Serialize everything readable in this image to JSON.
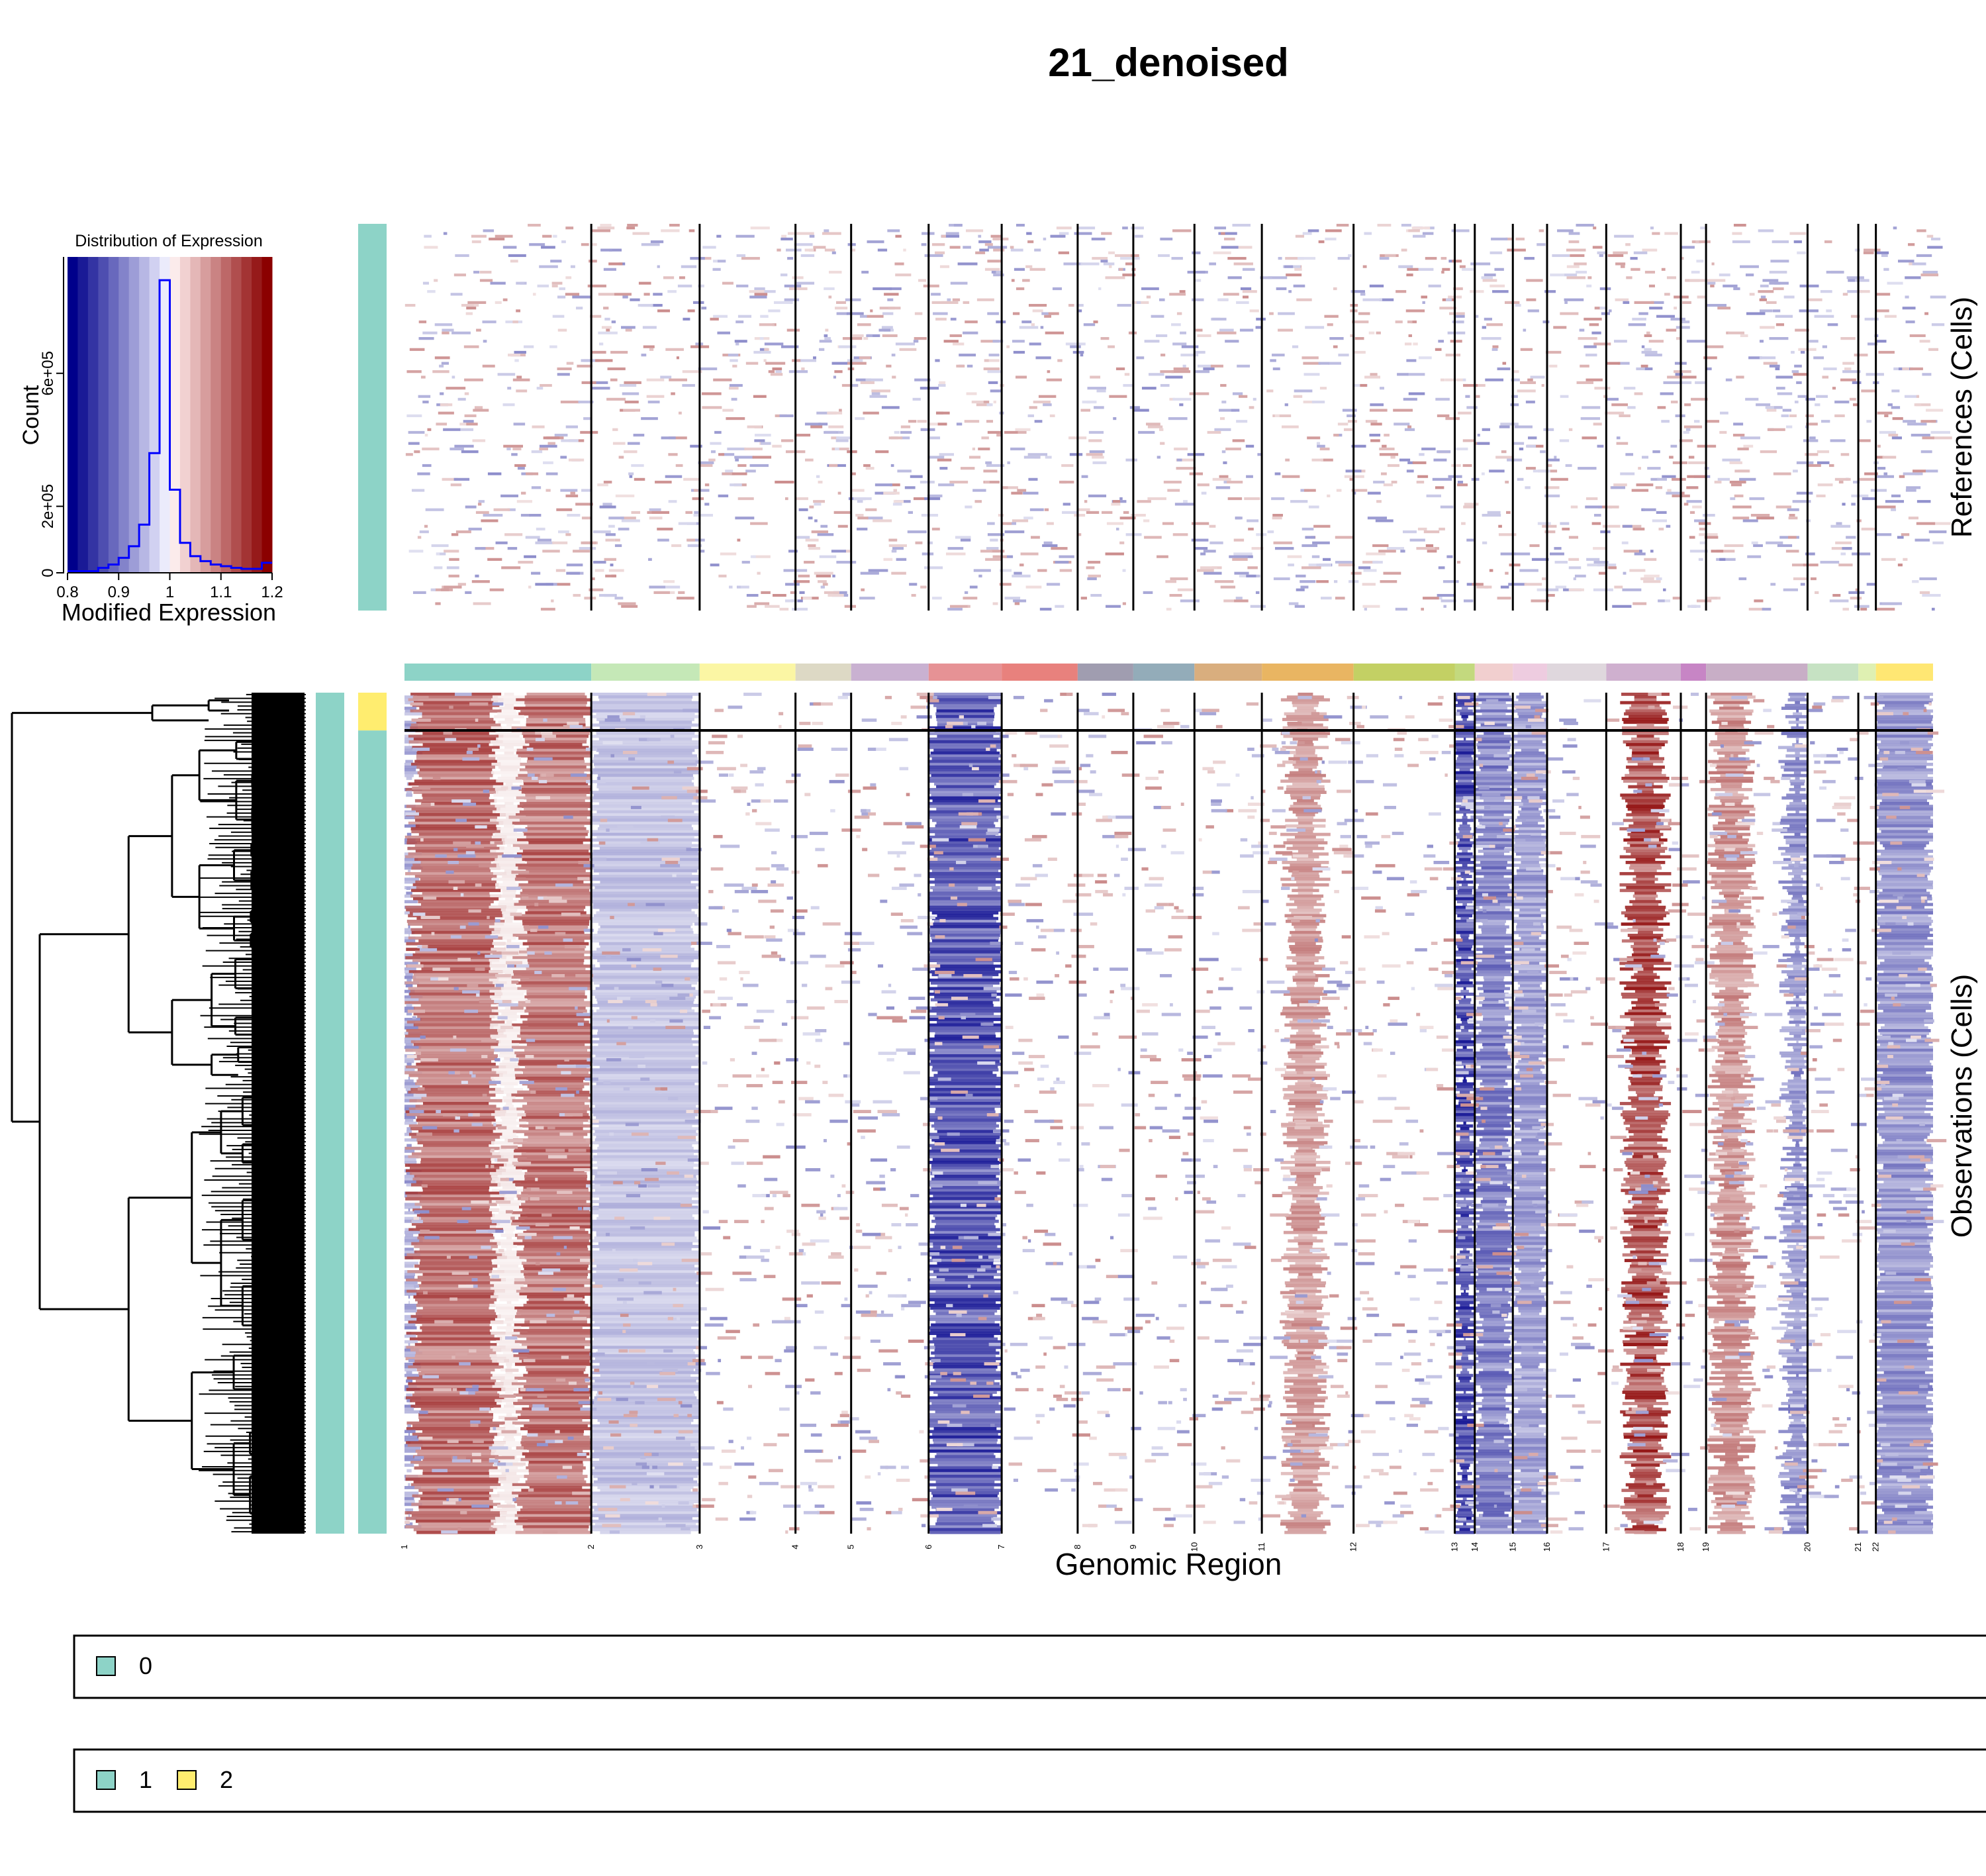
{
  "title": "21_denoised",
  "histogram": {
    "title": "Distribution of Expression",
    "xlabel": "Modified Expression",
    "ylabel": "Count",
    "x_ticks": [
      "0.8",
      "0.9",
      "1",
      "1.1",
      "1.2"
    ],
    "y_ticks": [
      "0",
      "2e+05",
      "6e+05"
    ]
  },
  "heatmap": {
    "xlabel": "Genomic Region",
    "references_label": "References (Cells)",
    "observations_label": "Observations (Cells)"
  },
  "legends": [
    {
      "items": [
        {
          "label": "0",
          "color": "#8dd3c7"
        }
      ]
    },
    {
      "items": [
        {
          "label": "1",
          "color": "#8dd3c7"
        },
        {
          "label": "2",
          "color": "#ffed6f"
        }
      ]
    }
  ],
  "colors": {
    "low": "#00008b",
    "high": "#8b0000",
    "mid": "#ffffff",
    "histogram_line": "#0000ff"
  },
  "chart_data": [
    {
      "type": "bar",
      "name": "histogram",
      "x_domain": [
        0.8,
        1.2
      ],
      "bin_edges": [
        0.8,
        0.82,
        0.84,
        0.86,
        0.88,
        0.9,
        0.92,
        0.94,
        0.96,
        0.98,
        1.0,
        1.02,
        1.04,
        1.06,
        1.08,
        1.1,
        1.12,
        1.14,
        1.16,
        1.18,
        1.2
      ],
      "counts": [
        5000,
        5000,
        5000,
        15000,
        25000,
        45000,
        80000,
        145000,
        360000,
        880000,
        250000,
        90000,
        50000,
        35000,
        25000,
        20000,
        15000,
        12000,
        12000,
        30000
      ],
      "ylim": [
        0,
        950000
      ],
      "color_bins": [
        "#00008b",
        "#1a1a96",
        "#3434a3",
        "#4e4eb0",
        "#6868bd",
        "#8383ca",
        "#9d9dd7",
        "#b7b7e4",
        "#d1d1f1",
        "#ebebfb",
        "#fbebeb",
        "#f1d1d1",
        "#e4b7b7",
        "#d79d9d",
        "#ca8383",
        "#bd6868",
        "#b04e4e",
        "#a33434",
        "#961a1a",
        "#8b0000"
      ]
    },
    {
      "type": "heatmap",
      "name": "infercnv",
      "chromosomes": [
        "1",
        "2",
        "3",
        "4",
        "5",
        "6",
        "7",
        "8",
        "9",
        "10",
        "11",
        "12",
        "13",
        "14",
        "15",
        "16",
        "17",
        "18",
        "19",
        "20",
        "21",
        "22"
      ],
      "chrom_boundaries": [
        0,
        0.1222,
        0.1931,
        0.2558,
        0.2922,
        0.3429,
        0.3907,
        0.4404,
        0.4768,
        0.5168,
        0.5609,
        0.6209,
        0.6871,
        0.7002,
        0.7251,
        0.7475,
        0.7862,
        0.835,
        0.8515,
        0.9179,
        0.9511,
        0.9626,
        1.0
      ],
      "chrom_colors": [
        "#8dd3c7",
        "#c5e8b7",
        "#fbf6a4",
        "#ddd9c5",
        "#c9b1d1",
        "#e69295",
        "#e8817d",
        "#a09db0",
        "#93acb9",
        "#d9ae7e",
        "#e9b562",
        "#c3d064",
        "#c3d97e",
        "#f1cfcf",
        "#eecce0",
        "#dfd7dd",
        "#cfb0cf",
        "#c785c5",
        "#c8aec6",
        "#c6e2c3",
        "#dff0b2",
        "#ffe773"
      ],
      "groups": [
        "0",
        "1",
        "2"
      ],
      "reference_group_colors": [
        "#8dd3c7"
      ],
      "observation_group_split": [
        0.045,
        1.0
      ],
      "observation_group_colors": [
        "#ffed6f",
        "#8dd3c7"
      ],
      "observation_profile": [
        {
          "chrom": "1",
          "from": 0,
          "to": 0.05,
          "value": -0.5
        },
        {
          "chrom": "1",
          "from": 0.05,
          "to": 0.5,
          "value": 0.8
        },
        {
          "chrom": "1",
          "from": 0.5,
          "to": 0.62,
          "value": 0.1
        },
        {
          "chrom": "1",
          "from": 0.62,
          "to": 1.0,
          "value": 0.8
        },
        {
          "chrom": "2",
          "from": 0,
          "to": 1.0,
          "value": -0.35
        },
        {
          "chrom": "6",
          "from": 0,
          "to": 1.0,
          "value": -0.95
        },
        {
          "chrom": "11",
          "from": 0.3,
          "to": 0.65,
          "value": 0.55
        },
        {
          "chrom": "13",
          "from": 0,
          "to": 1.0,
          "value": -1.0
        },
        {
          "chrom": "14",
          "from": 0,
          "to": 1.0,
          "value": -0.7
        },
        {
          "chrom": "15",
          "from": 0,
          "to": 1.0,
          "value": -0.55
        },
        {
          "chrom": "17",
          "from": 0.3,
          "to": 0.75,
          "value": 1.0
        },
        {
          "chrom": "19",
          "from": 0.1,
          "to": 0.4,
          "value": 0.6
        },
        {
          "chrom": "19",
          "from": 0.8,
          "to": 1.0,
          "value": -0.6
        },
        {
          "chrom": "22",
          "from": 0,
          "to": 1.0,
          "value": -0.6
        }
      ]
    }
  ]
}
